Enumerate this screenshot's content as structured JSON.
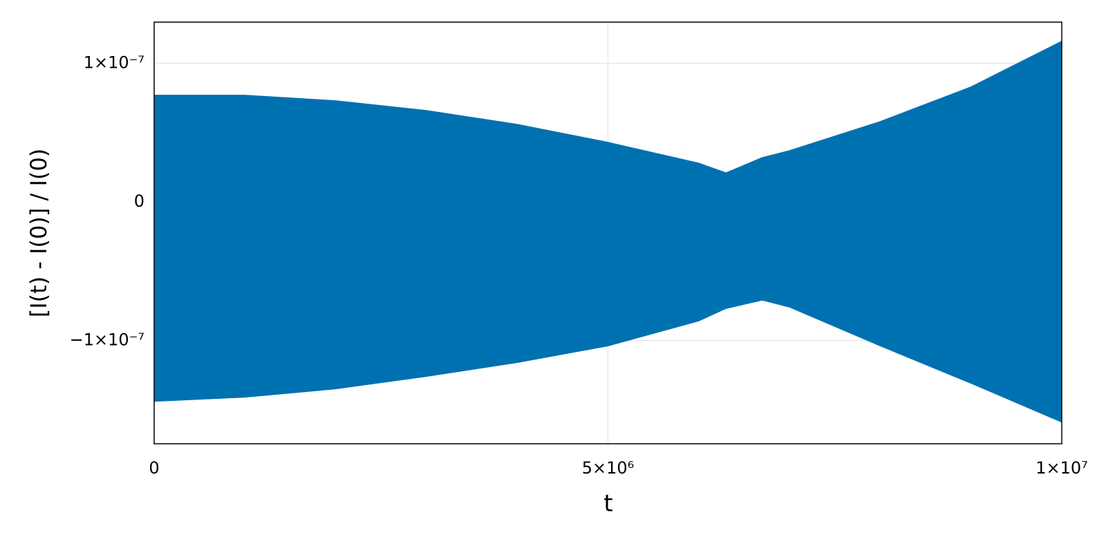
{
  "chart_data": {
    "type": "band",
    "x_label": "t",
    "y_label": "[I(t) - I(0)] / I(0)",
    "x": [
      0,
      1000000,
      2000000,
      3000000,
      4000000,
      5000000,
      6000000,
      6300000,
      6700000,
      7000000,
      8000000,
      9000000,
      10000000
    ],
    "upper": [
      7.7e-08,
      7.7e-08,
      7.3e-08,
      6.6e-08,
      5.6e-08,
      4.3e-08,
      2.8e-08,
      2.1e-08,
      3.2e-08,
      3.7e-08,
      5.8e-08,
      8.3e-08,
      1.16e-07
    ],
    "lower": [
      -1.44e-07,
      -1.41e-07,
      -1.35e-07,
      -1.26e-07,
      -1.16e-07,
      -1.04e-07,
      -8.6e-08,
      -7.7e-08,
      -7.1e-08,
      -7.6e-08,
      -1.04e-07,
      -1.31e-07,
      -1.59e-07
    ],
    "color": "#0071b0",
    "xlim": [
      0,
      10000000
    ],
    "xticks": [
      0,
      {
        "value": 5000000,
        "label": "5×10⁶"
      },
      {
        "value": 10000000,
        "label": "1×10⁷"
      }
    ],
    "ylim": [
      -1.746e-07,
      1.297e-07
    ],
    "yticks": [
      {
        "value": -1e-07,
        "label": "−1×10⁻⁷"
      },
      0,
      {
        "value": 1e-07,
        "label": "1×10⁻⁷"
      }
    ],
    "grid": true
  }
}
